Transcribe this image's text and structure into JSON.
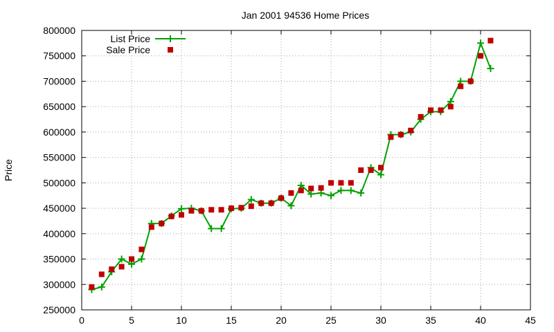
{
  "chart_data": {
    "type": "line",
    "title": "Jan 2001 94536 Home Prices",
    "xlabel": "",
    "ylabel": "Price",
    "xlim": [
      0,
      45
    ],
    "ylim": [
      250000,
      800000
    ],
    "xticks": [
      0,
      5,
      10,
      15,
      20,
      25,
      30,
      35,
      40,
      45
    ],
    "yticks": [
      250000,
      300000,
      350000,
      400000,
      450000,
      500000,
      550000,
      600000,
      650000,
      700000,
      750000,
      800000
    ],
    "grid": true,
    "legend_position": "top-left",
    "series": [
      {
        "name": "List Price",
        "style": "line+cross",
        "color": "#00a000",
        "x": [
          1,
          2,
          3,
          4,
          5,
          6,
          7,
          8,
          9,
          10,
          11,
          12,
          13,
          14,
          15,
          16,
          17,
          18,
          19,
          20,
          21,
          22,
          23,
          24,
          25,
          26,
          27,
          28,
          29,
          30,
          31,
          32,
          33,
          34,
          35,
          36,
          37,
          38,
          39,
          40,
          41
        ],
        "values": [
          290000,
          295000,
          325000,
          350000,
          340000,
          350000,
          420000,
          420000,
          435000,
          449000,
          450000,
          445000,
          410000,
          410000,
          449000,
          450000,
          467000,
          460000,
          460000,
          470000,
          455000,
          495000,
          478000,
          480000,
          475000,
          485000,
          485000,
          480000,
          530000,
          516000,
          595000,
          595000,
          600000,
          625000,
          640000,
          640000,
          660000,
          700000,
          700000,
          775000,
          725000
        ]
      },
      {
        "name": "Sale Price",
        "style": "square",
        "color": "#c00000",
        "x": [
          1,
          2,
          3,
          4,
          5,
          6,
          7,
          8,
          9,
          10,
          11,
          12,
          13,
          14,
          15,
          16,
          17,
          18,
          19,
          20,
          21,
          22,
          23,
          24,
          25,
          26,
          27,
          28,
          29,
          30,
          31,
          32,
          33,
          34,
          35,
          36,
          37,
          38,
          39,
          40,
          41
        ],
        "values": [
          295000,
          320000,
          330000,
          335000,
          350000,
          369000,
          413000,
          420000,
          434000,
          437000,
          445000,
          445000,
          447000,
          447000,
          450000,
          451000,
          454000,
          460000,
          460000,
          470000,
          480000,
          485000,
          489000,
          490000,
          500000,
          500000,
          500000,
          525000,
          525000,
          530000,
          590000,
          595000,
          603000,
          630000,
          643000,
          643000,
          650000,
          690000,
          700000,
          750000,
          780000
        ]
      }
    ]
  }
}
